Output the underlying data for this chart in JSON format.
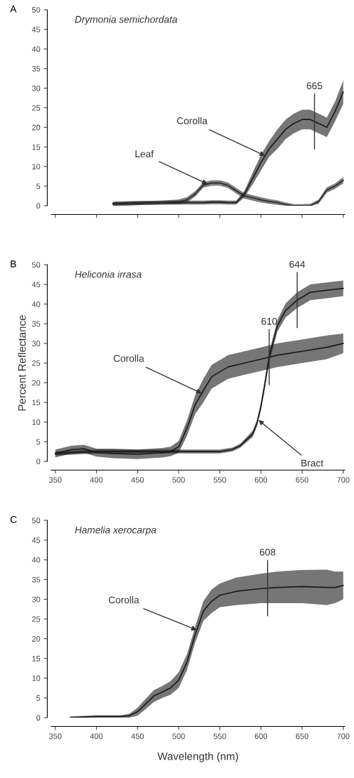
{
  "chart_data": [
    {
      "type": "line",
      "title": "Drymonia semichordata",
      "xlim": [
        345,
        702
      ],
      "xticks": [
        350,
        400,
        450,
        500,
        550,
        600,
        650,
        700
      ],
      "ylim": [
        0,
        50
      ],
      "yticks": [
        0,
        5,
        10,
        15,
        20,
        25,
        30,
        35,
        40,
        45,
        50
      ],
      "grid": false,
      "legend": false,
      "marker": "none",
      "line_style": "solid",
      "tick_labels": "y",
      "annotations": [
        "A",
        {
          "text": "Corolla",
          "x": 605,
          "y": 12.75
        },
        {
          "text": "Leaf",
          "x": 535,
          "y": 5.55
        }
      ],
      "ref_lines": [
        {
          "axis": "x",
          "value": 665,
          "label": "665"
        }
      ],
      "series": [
        {
          "color": "#1a1a1a",
          "x": [
            420,
            440,
            460,
            480,
            500,
            510,
            520,
            530,
            540,
            550,
            560,
            570,
            580,
            590,
            600,
            610,
            620,
            630,
            640,
            650,
            660,
            670,
            680,
            690,
            700
          ],
          "values": [
            0.5,
            0.6,
            0.7,
            0.8,
            0.8,
            0.8,
            0.8,
            0.8,
            0.9,
            0.9,
            0.8,
            0.8,
            3,
            7,
            11,
            14.5,
            17,
            19.5,
            21,
            22,
            22,
            21,
            20,
            24,
            29
          ],
          "lower": [
            0,
            0.1,
            0.2,
            0.3,
            0.3,
            0.3,
            0.3,
            0.3,
            0.4,
            0.4,
            0.3,
            0.3,
            2.2,
            5.5,
            9,
            12.5,
            14.5,
            17,
            18.5,
            19.5,
            19.5,
            18.5,
            17.5,
            21.5,
            26
          ],
          "upper": [
            1,
            1.1,
            1.2,
            1.3,
            1.3,
            1.3,
            1.3,
            1.3,
            1.4,
            1.4,
            1.3,
            1.3,
            3.8,
            8.5,
            13,
            16.5,
            19.5,
            22,
            23.5,
            24.5,
            24.5,
            23.5,
            22.5,
            26.5,
            32
          ]
        },
        {
          "color": "#2a2a2a",
          "x": [
            420,
            440,
            460,
            480,
            500,
            510,
            520,
            530,
            540,
            550,
            560,
            570,
            580,
            590,
            600,
            610,
            620,
            630,
            640,
            650,
            660,
            670,
            680,
            690,
            700
          ],
          "values": [
            0.5,
            0.6,
            0.7,
            0.8,
            1,
            1.5,
            3,
            5.3,
            5.8,
            5.8,
            5.2,
            3.8,
            2.5,
            2,
            1.5,
            1.1,
            0.8,
            0.3,
            0,
            0,
            0,
            1,
            4,
            5,
            6.5
          ],
          "lower": [
            0,
            0.1,
            0.2,
            0.3,
            0.4,
            0.8,
            2.3,
            4.6,
            5.1,
            5.1,
            4.5,
            3.1,
            1.8,
            1.3,
            0.8,
            0.5,
            0.2,
            0,
            0,
            0,
            0,
            0.5,
            3.3,
            4.3,
            5.7
          ],
          "upper": [
            1,
            1.1,
            1.2,
            1.3,
            1.6,
            2.2,
            3.7,
            6,
            6.5,
            6.5,
            5.9,
            4.5,
            3.2,
            2.7,
            2.2,
            1.7,
            1.4,
            0.8,
            0.4,
            0.4,
            0.5,
            1.6,
            4.7,
            5.7,
            7.3
          ]
        }
      ]
    },
    {
      "type": "line",
      "title": "Heliconia irrasa",
      "ylabel": "Percent Reflectance",
      "xlim": [
        345,
        702
      ],
      "xticks": [
        350,
        400,
        450,
        500,
        550,
        600,
        650,
        700
      ],
      "ylim": [
        0,
        50
      ],
      "yticks": [
        0,
        5,
        10,
        15,
        20,
        25,
        30,
        35,
        40,
        45,
        50
      ],
      "grid": false,
      "legend": false,
      "marker": "none",
      "line_style": "solid",
      "annotations": [
        "B",
        {
          "text": "Corolla",
          "x": 528,
          "y": 17.3
        },
        {
          "text": "Bract",
          "x": 597,
          "y": 10.5
        }
      ],
      "ref_lines": [
        {
          "axis": "x",
          "value": 610,
          "label": "610"
        },
        {
          "axis": "x",
          "value": 644,
          "label": "644"
        }
      ],
      "series": [
        {
          "color": "#1a1a1a",
          "x": [
            350,
            370,
            385,
            400,
            420,
            450,
            480,
            490,
            500,
            510,
            520,
            530,
            540,
            560,
            580,
            600,
            620,
            650,
            680,
            700
          ],
          "values": [
            2,
            3,
            3.2,
            2.2,
            2,
            1.8,
            2.2,
            2.5,
            3.7,
            8.4,
            14.4,
            18,
            21.5,
            24,
            25,
            26,
            27,
            28,
            29,
            30
          ],
          "lower": [
            1,
            2,
            2.2,
            1.2,
            0.8,
            0.6,
            1,
            1.3,
            2.2,
            6.5,
            12,
            15,
            18.5,
            21,
            22,
            23,
            24,
            25,
            26,
            27.5
          ],
          "upper": [
            3,
            4,
            4.2,
            3.2,
            3.2,
            3,
            3.4,
            3.7,
            5.2,
            10.3,
            16.8,
            21,
            24.5,
            27,
            28,
            29,
            30,
            31,
            32,
            32.5
          ]
        },
        {
          "color": "#1a1a1a",
          "x": [
            350,
            400,
            450,
            500,
            550,
            565,
            575,
            585,
            590,
            595,
            600,
            605,
            610,
            620,
            630,
            644,
            660,
            680,
            700
          ],
          "values": [
            2,
            2.5,
            2.5,
            2.5,
            2.5,
            3,
            4,
            6,
            7,
            9.6,
            14,
            20,
            26.5,
            34.5,
            38.4,
            41,
            43,
            43.5,
            44
          ],
          "lower": [
            1.5,
            2,
            2,
            2,
            2,
            2.5,
            3.5,
            5.3,
            6.2,
            8.8,
            13,
            18.8,
            25.2,
            33,
            36.6,
            39,
            41,
            41.5,
            42
          ],
          "upper": [
            2.5,
            3,
            3,
            3,
            3,
            3.5,
            4.5,
            6.7,
            7.8,
            10.4,
            15,
            21.2,
            27.8,
            36,
            40.2,
            43,
            45,
            45.5,
            46
          ]
        }
      ]
    },
    {
      "type": "line",
      "title": "Hamelia xerocarpa",
      "xlabel": "Wavelength (nm)",
      "xlim": [
        345,
        702
      ],
      "xticks": [
        350,
        400,
        450,
        500,
        550,
        600,
        650,
        700
      ],
      "ylim": [
        0,
        50
      ],
      "yticks": [
        0,
        5,
        10,
        15,
        20,
        25,
        30,
        35,
        40,
        45,
        50
      ],
      "grid": false,
      "legend": false,
      "marker": "none",
      "line_style": "solid",
      "annotations": [
        "C",
        {
          "text": "Corolla",
          "x": 522,
          "y": 22.2
        }
      ],
      "ref_lines": [
        {
          "axis": "x",
          "value": 608,
          "label": "608"
        }
      ],
      "series": [
        {
          "color": "#1a1a1a",
          "x": [
            368,
            400,
            430,
            440,
            450,
            460,
            470,
            480,
            490,
            500,
            510,
            520,
            530,
            540,
            550,
            570,
            600,
            620,
            650,
            680,
            690,
            700
          ],
          "values": [
            0,
            0.3,
            0.3,
            0.5,
            1.5,
            3.5,
            5.5,
            6.5,
            7.5,
            9.5,
            14,
            21,
            27,
            29.5,
            31,
            32,
            32.7,
            33,
            33.2,
            33,
            33,
            33.5
          ],
          "lower": [
            0,
            0,
            0,
            0,
            0.5,
            2.2,
            4,
            5,
            5.8,
            7.5,
            12,
            19,
            24.5,
            26.5,
            28,
            28.5,
            29,
            29,
            29,
            28.5,
            29,
            30
          ],
          "upper": [
            0.3,
            0.6,
            0.6,
            1,
            2.5,
            4.8,
            7,
            8,
            9.2,
            11.5,
            16,
            23,
            29.5,
            32.5,
            34,
            35.5,
            36.5,
            37,
            37.4,
            37.5,
            37,
            37
          ]
        }
      ]
    }
  ]
}
